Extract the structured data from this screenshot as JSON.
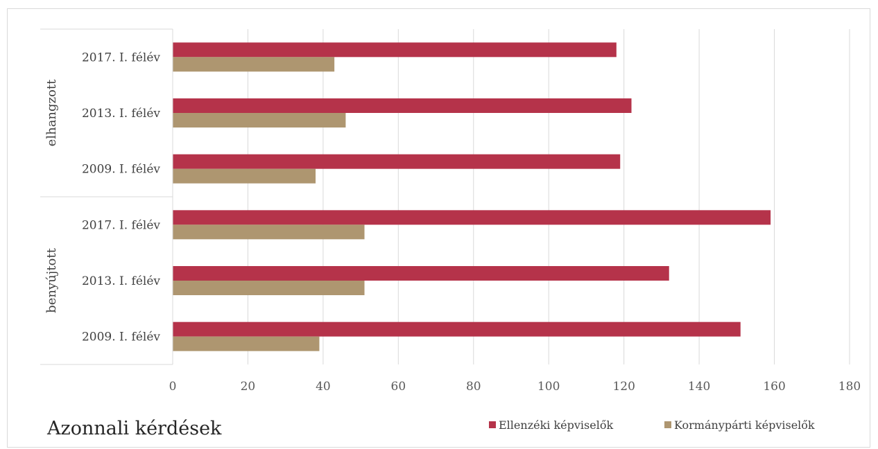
{
  "chart_data": {
    "type": "bar",
    "orientation": "horizontal",
    "title": "Azonnali kérdések",
    "groups": [
      {
        "name": "benyújtott",
        "categories": [
          "2009. I. félév",
          "2013. I. félév",
          "2017. I. félév"
        ]
      },
      {
        "name": "elhangzott",
        "categories": [
          "2009. I. félév",
          "2013. I. félév",
          "2017. I. félév"
        ]
      }
    ],
    "categories": [
      "2009. I. félév",
      "2013. I. félév",
      "2017. I. félév",
      "2009. I. félév",
      "2013. I. félév",
      "2017. I. félév"
    ],
    "series": [
      {
        "name": "Ellenzéki képviselők",
        "color": "#b5334a",
        "values": [
          151,
          132,
          159,
          119,
          122,
          118
        ]
      },
      {
        "name": "Kormánypárti képviselők",
        "color": "#ae9670",
        "values": [
          39,
          51,
          51,
          38,
          46,
          43
        ]
      }
    ],
    "xlim": [
      0,
      180
    ],
    "xticks": [
      "0",
      "20",
      "40",
      "60",
      "80",
      "100",
      "120",
      "140",
      "160",
      "180"
    ],
    "grid": true,
    "legend_position": "bottom-right"
  }
}
